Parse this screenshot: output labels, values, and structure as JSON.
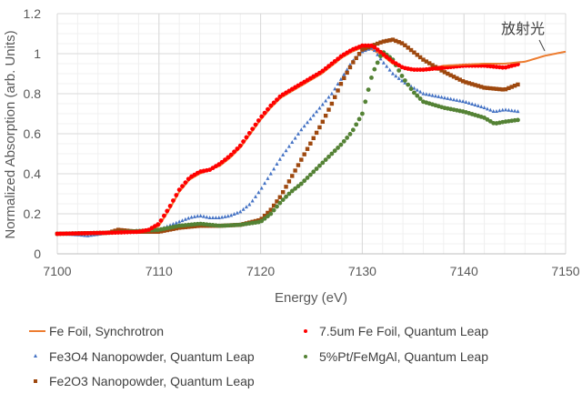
{
  "chart_data": {
    "type": "scatter",
    "title": "",
    "xlabel": "Energy (eV)",
    "ylabel": "Normalized Absorption (arb. Units)",
    "xlim": [
      7100,
      7150
    ],
    "ylim": [
      0,
      1.2
    ],
    "xticks": [
      "7100",
      "7110",
      "7120",
      "7130",
      "7140",
      "7150"
    ],
    "yticks": [
      "0",
      "0.2",
      "0.4",
      "0.6",
      "0.8",
      "1",
      "1.2"
    ],
    "grid": true,
    "legend_position": "bottom",
    "annotation": {
      "text": "放射光",
      "target_series": "Fe Foil, Synchrotron",
      "x": 7148,
      "y": 1.0
    },
    "series": [
      {
        "name": "Fe Foil, Synchrotron",
        "style": "line",
        "color": "#ED7D31",
        "x": [
          7100,
          7105,
          7108,
          7109,
          7110,
          7111,
          7112,
          7113,
          7114,
          7115,
          7116,
          7117,
          7118,
          7119,
          7120,
          7121,
          7122,
          7123,
          7124,
          7125,
          7126,
          7127,
          7128,
          7129,
          7130,
          7131,
          7132,
          7133,
          7134,
          7135,
          7136,
          7137,
          7138,
          7140,
          7142,
          7144,
          7146,
          7148,
          7150
        ],
        "y": [
          0.1,
          0.105,
          0.11,
          0.115,
          0.14,
          0.22,
          0.31,
          0.37,
          0.4,
          0.42,
          0.44,
          0.48,
          0.53,
          0.6,
          0.67,
          0.73,
          0.78,
          0.81,
          0.84,
          0.87,
          0.9,
          0.94,
          0.98,
          1.01,
          1.03,
          1.02,
          0.99,
          0.95,
          0.93,
          0.92,
          0.92,
          0.93,
          0.94,
          0.945,
          0.95,
          0.95,
          0.96,
          0.99,
          1.01
        ]
      },
      {
        "name": "7.5um Fe Foil, Quantum Leap",
        "style": "circle",
        "color": "#FF0000",
        "x": [
          7100,
          7105,
          7108,
          7109,
          7110,
          7111,
          7112,
          7113,
          7114,
          7115,
          7116,
          7117,
          7118,
          7119,
          7120,
          7121,
          7122,
          7123,
          7124,
          7125,
          7126,
          7127,
          7128,
          7129,
          7130,
          7131,
          7132,
          7133,
          7134,
          7135,
          7136,
          7137,
          7138,
          7140,
          7142,
          7144,
          7145.5
        ],
        "y": [
          0.1,
          0.105,
          0.11,
          0.12,
          0.15,
          0.23,
          0.32,
          0.38,
          0.41,
          0.42,
          0.45,
          0.49,
          0.54,
          0.61,
          0.68,
          0.74,
          0.79,
          0.82,
          0.85,
          0.88,
          0.91,
          0.95,
          0.99,
          1.02,
          1.04,
          1.04,
          1.0,
          0.96,
          0.93,
          0.92,
          0.92,
          0.925,
          0.93,
          0.94,
          0.94,
          0.93,
          0.95
        ]
      },
      {
        "name": "Fe3O4 Nanopowder, Quantum Leap",
        "style": "triangle",
        "color": "#4472C4",
        "x": [
          7100,
          7102,
          7103,
          7105,
          7108,
          7110,
          7111,
          7112,
          7113,
          7114,
          7115,
          7116,
          7117,
          7118,
          7119,
          7120,
          7121,
          7122,
          7123,
          7124,
          7125,
          7126,
          7127,
          7128,
          7129,
          7130,
          7131,
          7132,
          7133,
          7134,
          7135,
          7136,
          7138,
          7140,
          7142,
          7143,
          7144,
          7145.5
        ],
        "y": [
          0.1,
          0.095,
          0.09,
          0.105,
          0.11,
          0.12,
          0.14,
          0.16,
          0.18,
          0.19,
          0.18,
          0.18,
          0.19,
          0.21,
          0.25,
          0.32,
          0.4,
          0.48,
          0.55,
          0.62,
          0.68,
          0.74,
          0.8,
          0.88,
          0.96,
          1.01,
          1.03,
          0.96,
          0.9,
          0.86,
          0.83,
          0.8,
          0.78,
          0.76,
          0.73,
          0.71,
          0.72,
          0.71
        ]
      },
      {
        "name": "5%Pt/FeMgAl, Quantum Leap",
        "style": "circle",
        "color": "#548235",
        "x": [
          7100,
          7105,
          7110,
          7112,
          7114,
          7115,
          7116,
          7118,
          7120,
          7121,
          7122,
          7123,
          7124,
          7125,
          7126,
          7127,
          7128,
          7129,
          7130,
          7131,
          7132,
          7133,
          7134,
          7135,
          7136,
          7138,
          7140,
          7142,
          7143,
          7144,
          7145.5
        ],
        "y": [
          0.1,
          0.105,
          0.12,
          0.14,
          0.15,
          0.145,
          0.14,
          0.145,
          0.16,
          0.2,
          0.26,
          0.31,
          0.35,
          0.4,
          0.45,
          0.5,
          0.55,
          0.61,
          0.7,
          0.9,
          1.01,
          0.97,
          0.88,
          0.81,
          0.76,
          0.73,
          0.71,
          0.68,
          0.65,
          0.66,
          0.67
        ]
      },
      {
        "name": "Fe2O3 Nanopowder, Quantum Leap",
        "style": "square",
        "color": "#9E480E",
        "x": [
          7100,
          7105,
          7106,
          7108,
          7110,
          7112,
          7114,
          7116,
          7118,
          7120,
          7121,
          7122,
          7123,
          7124,
          7125,
          7126,
          7127,
          7128,
          7129,
          7130,
          7131,
          7132,
          7133,
          7134,
          7135,
          7136,
          7137,
          7138,
          7140,
          7142,
          7144,
          7145.5
        ],
        "y": [
          0.1,
          0.105,
          0.12,
          0.11,
          0.11,
          0.13,
          0.14,
          0.14,
          0.145,
          0.17,
          0.22,
          0.29,
          0.38,
          0.47,
          0.56,
          0.65,
          0.75,
          0.86,
          0.95,
          1.02,
          1.04,
          1.06,
          1.07,
          1.05,
          1.01,
          0.97,
          0.94,
          0.91,
          0.86,
          0.83,
          0.82,
          0.85
        ]
      }
    ]
  },
  "legend": [
    {
      "label": "Fe Foil, Synchrotron",
      "symbol": "line",
      "color": "#ED7D31"
    },
    {
      "label": "7.5um Fe Foil, Quantum Leap",
      "symbol": "circle",
      "color": "#FF0000"
    },
    {
      "label": "Fe3O4 Nanopowder, Quantum Leap",
      "symbol": "triangle",
      "color": "#4472C4"
    },
    {
      "label": "5%Pt/FeMgAl, Quantum Leap",
      "symbol": "circle",
      "color": "#548235"
    },
    {
      "label": "Fe2O3 Nanopowder, Quantum Leap",
      "symbol": "square",
      "color": "#9E480E"
    }
  ]
}
